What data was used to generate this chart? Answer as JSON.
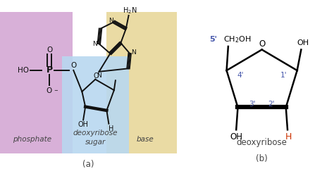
{
  "bg_color": "#ffffff",
  "phosphate_bg": "#d4a8d4",
  "sugar_bg": "#b8d8f0",
  "base_bg": "#e8d89a",
  "panel_a_label": "(a)",
  "panel_b_label": "(b)",
  "phosphate_label": "phosphate",
  "sugar_label": "deoxyribose\nsugar",
  "base_label": "base",
  "deoxyribose_label": "deoxyribose",
  "label_color": "#444444",
  "prime_color": "#4455aa",
  "H_color": "#cc3300",
  "line_color": "#111111"
}
